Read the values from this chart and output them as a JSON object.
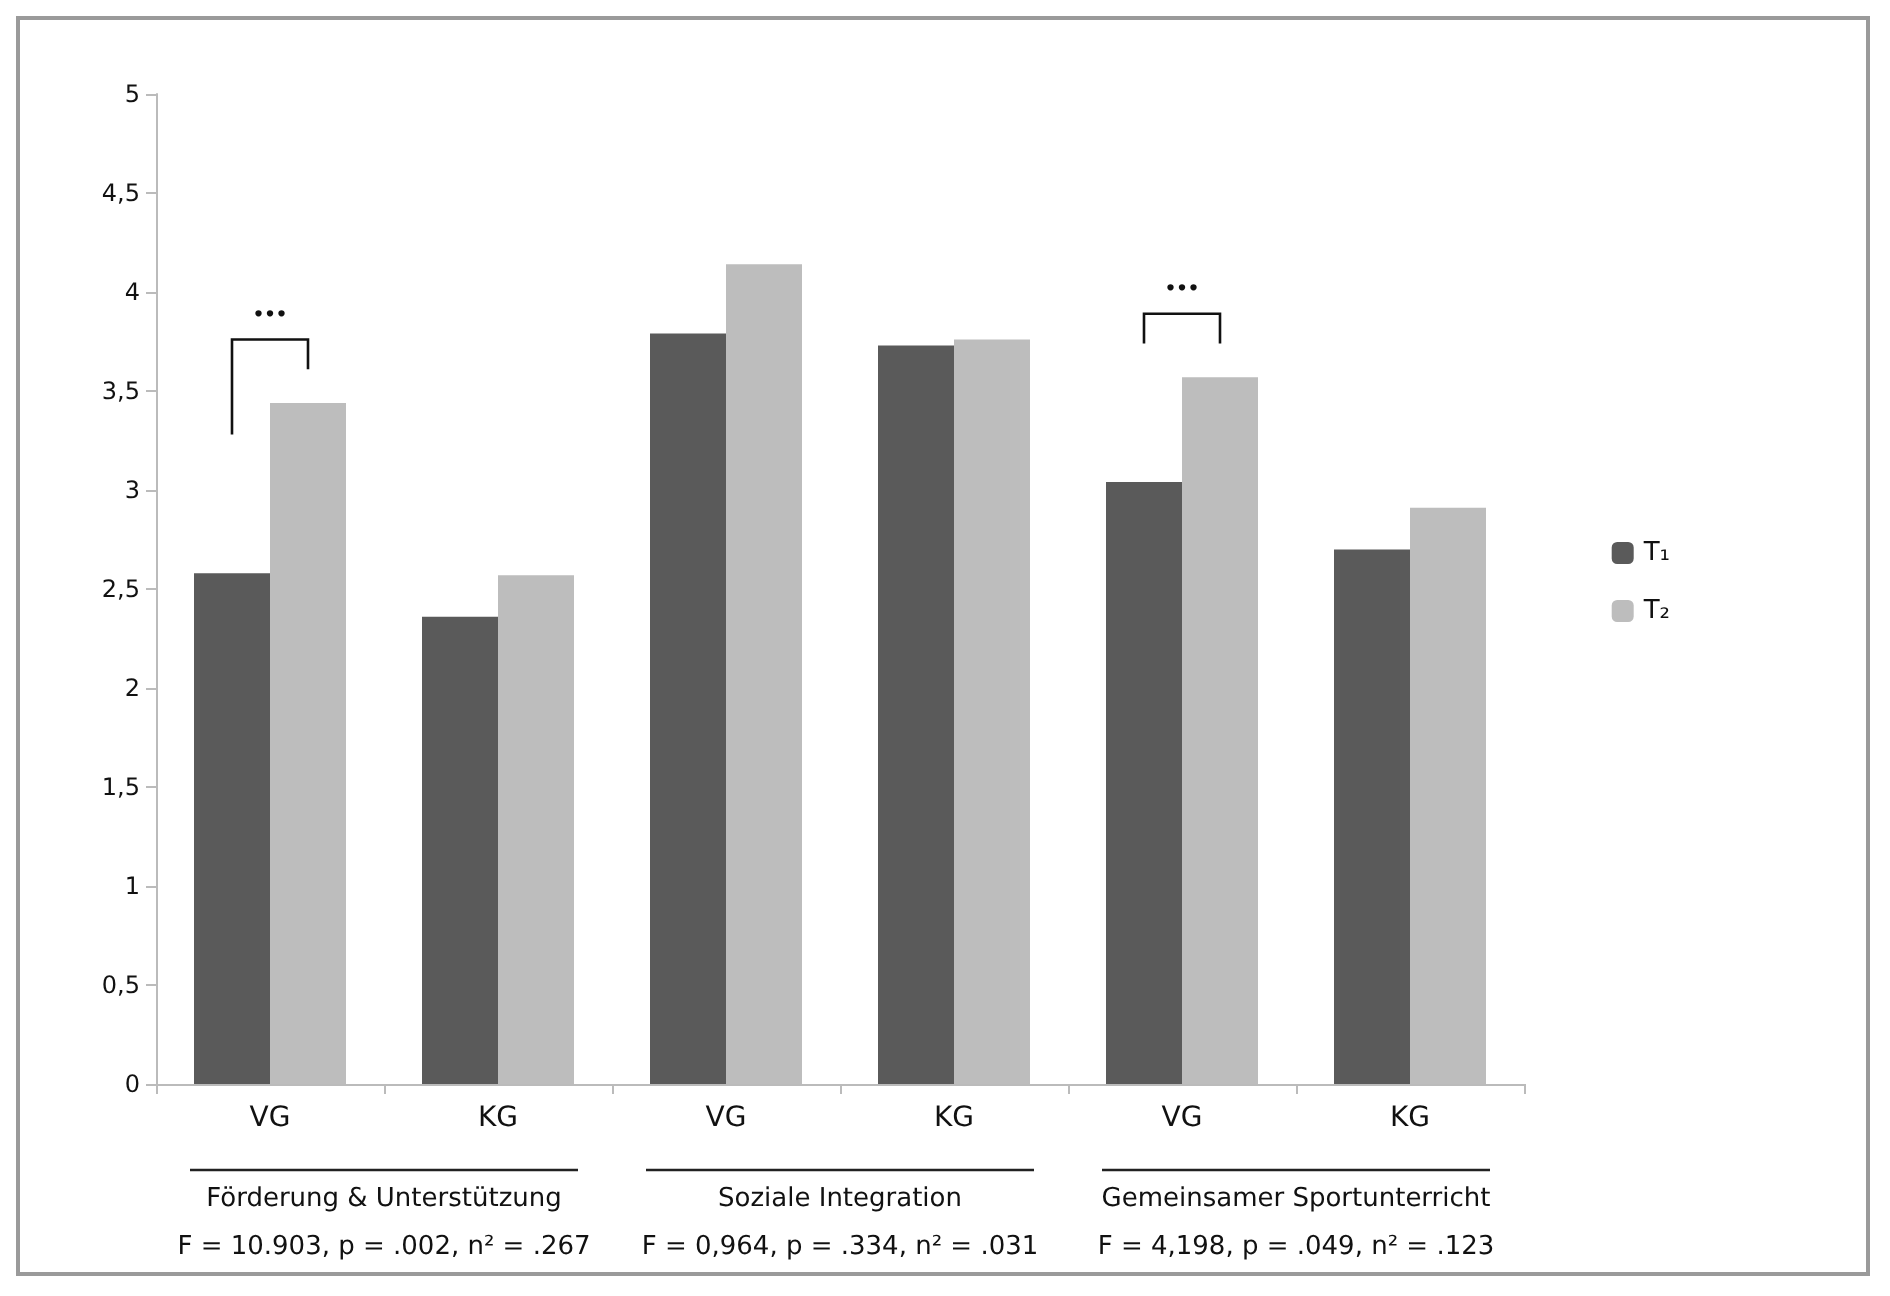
{
  "chart_data": {
    "type": "bar",
    "categories": [
      "VG",
      "KG",
      "VG",
      "KG",
      "VG",
      "KG"
    ],
    "series": [
      {
        "name": "T₁",
        "color": "#5a5a5a",
        "values": [
          2.58,
          2.36,
          3.79,
          3.73,
          3.04,
          2.7
        ]
      },
      {
        "name": "T₂",
        "color": "#bdbdbd",
        "values": [
          3.44,
          2.57,
          4.14,
          3.76,
          3.57,
          2.91
        ]
      }
    ],
    "ylim": [
      0,
      5
    ],
    "yticks": [
      0,
      {
        "value": 0.5,
        "label": "0,5"
      },
      1,
      {
        "value": 1.5,
        "label": "1,5"
      },
      2,
      {
        "value": 2.5,
        "label": "2,5"
      },
      3,
      {
        "value": 3.5,
        "label": "3,5"
      },
      4,
      {
        "value": 4.5,
        "label": "4,5"
      },
      5
    ],
    "grid": false,
    "legend": "right",
    "annotations": [
      "Förderung & Unterstützung",
      "F = 10.903, p = .002, n² = .267",
      "Soziale Integration",
      "F = 0,964, p = .334, n² = .031",
      "Gemeinsamer Sportunterricht",
      "F = 4,198, p = .049, n² = .123",
      "•••",
      "•••"
    ]
  }
}
